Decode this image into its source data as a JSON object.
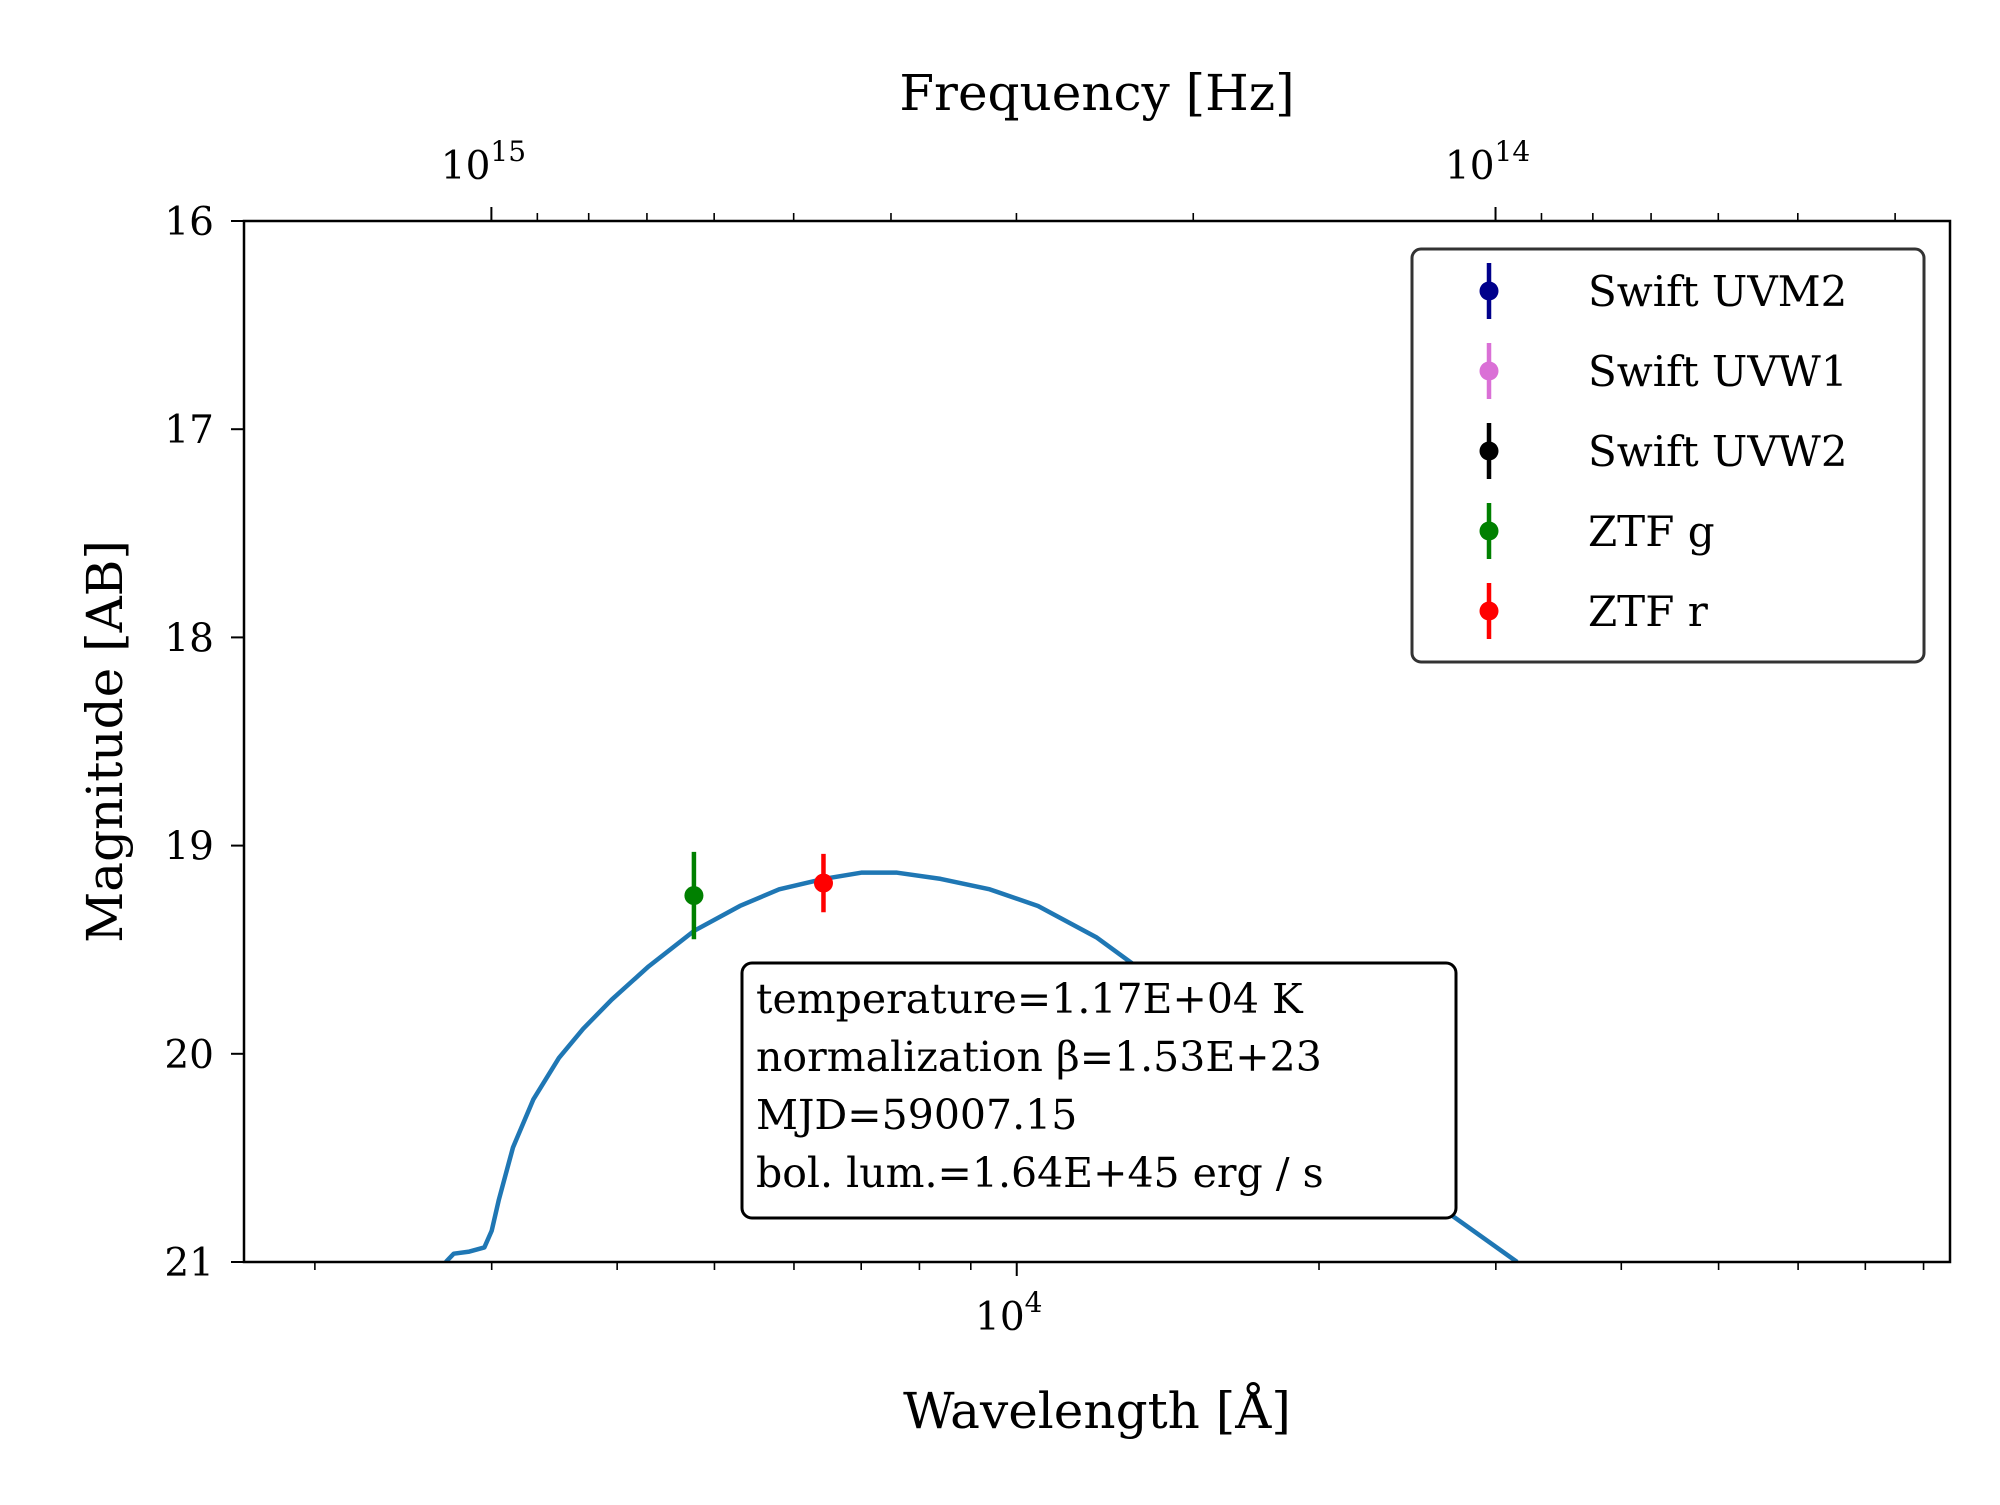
{
  "chart_data": {
    "type": "scatter",
    "title": "",
    "xlabel": "Wavelength [Å]",
    "ylabel": "Magnitude [AB]",
    "top_xlabel": "Frequency [Hz]",
    "x_scale": "log",
    "xlim": [
      1700,
      85000
    ],
    "ylim": [
      21,
      16
    ],
    "y_inverted": true,
    "grid": false,
    "legend_position": "top-right",
    "yticks": [
      {
        "value": 16,
        "label": "16"
      },
      {
        "value": 17,
        "label": "17"
      },
      {
        "value": 18,
        "label": "18"
      },
      {
        "value": 19,
        "label": "19"
      },
      {
        "value": 20,
        "label": "20"
      },
      {
        "value": 21,
        "label": "21"
      }
    ],
    "xticks_major": [
      {
        "value": 10000,
        "base": "10",
        "exp": "4"
      }
    ],
    "xticks_top": [
      {
        "frequency": 1000000000000000.0,
        "base": "10",
        "exp": "15"
      },
      {
        "frequency": 100000000000000.0,
        "base": "10",
        "exp": "14"
      }
    ],
    "series": [
      {
        "name": "Swift UVM2",
        "color": "#00008b",
        "points": []
      },
      {
        "name": "Swift UVW1",
        "color": "#da70d6",
        "points": []
      },
      {
        "name": "Swift UVW2",
        "color": "#000000",
        "points": []
      },
      {
        "name": "ZTF g",
        "color": "#008000",
        "points": [
          {
            "x": 4770,
            "y": 19.24,
            "yerr": 0.21
          }
        ]
      },
      {
        "name": "ZTF r",
        "color": "#ff0000",
        "points": [
          {
            "x": 6420,
            "y": 19.18,
            "yerr": 0.14
          }
        ]
      }
    ],
    "model_curve": {
      "color": "#1f77b4",
      "points": [
        [
          2700,
          21.0
        ],
        [
          2750,
          20.96
        ],
        [
          2850,
          20.95
        ],
        [
          2950,
          20.93
        ],
        [
          3000,
          20.85
        ],
        [
          3050,
          20.7
        ],
        [
          3150,
          20.45
        ],
        [
          3300,
          20.22
        ],
        [
          3500,
          20.02
        ],
        [
          3700,
          19.88
        ],
        [
          3950,
          19.74
        ],
        [
          4300,
          19.58
        ],
        [
          4770,
          19.41
        ],
        [
          5300,
          19.29
        ],
        [
          5800,
          19.21
        ],
        [
          6420,
          19.16
        ],
        [
          7000,
          19.13
        ],
        [
          7600,
          19.13
        ],
        [
          8400,
          19.16
        ],
        [
          9400,
          19.21
        ],
        [
          10500,
          19.29
        ],
        [
          12000,
          19.44
        ],
        [
          13500,
          19.62
        ],
        [
          15500,
          19.87
        ],
        [
          17500,
          20.06
        ],
        [
          20000,
          20.29
        ],
        [
          23000,
          20.52
        ],
        [
          27000,
          20.77
        ],
        [
          31500,
          21.0
        ]
      ]
    },
    "annotation": {
      "lines": [
        "temperature=1.17E+04 K",
        "normalization β=1.53E+23",
        "MJD=59007.15",
        "bol. lum.=1.64E+45 erg / s"
      ]
    }
  }
}
